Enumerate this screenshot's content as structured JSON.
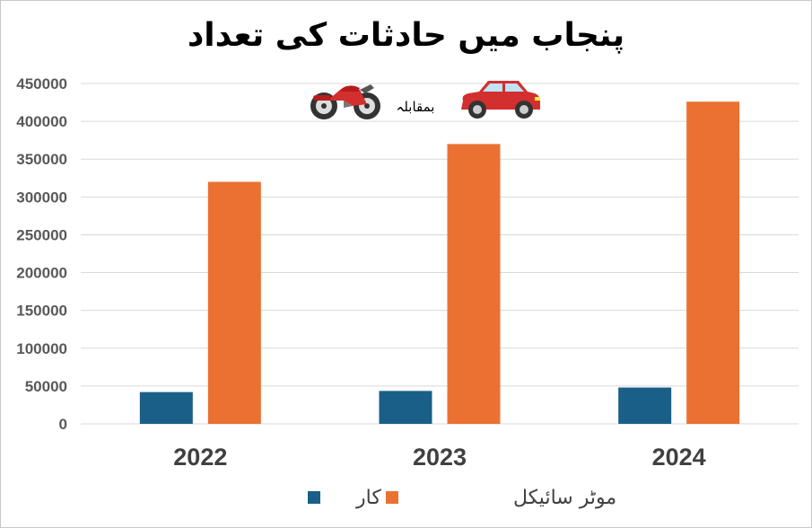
{
  "title": "پنجاب میں حادثات کی تعداد",
  "versus_label": "بمقابلہ",
  "colors": {
    "car": "#1a5f87",
    "motorcycle": "#ea7132",
    "grid": "#d9d9d9"
  },
  "icons": [
    "motorcycle-icon",
    "car-icon"
  ],
  "chart_data": {
    "type": "bar",
    "categories": [
      "2022",
      "2023",
      "2024"
    ],
    "series": [
      {
        "name": "کار",
        "values": [
          42000,
          43500,
          48000
        ]
      },
      {
        "name": "موٹر سائیکل",
        "values": [
          320000,
          370000,
          426000
        ]
      }
    ],
    "ylim": [
      0,
      450000
    ],
    "yticks": [
      "0",
      "50000",
      "100000",
      "150000",
      "200000",
      "250000",
      "300000",
      "350000",
      "400000",
      "450000"
    ],
    "grid": true,
    "legend_position": "bottom"
  }
}
